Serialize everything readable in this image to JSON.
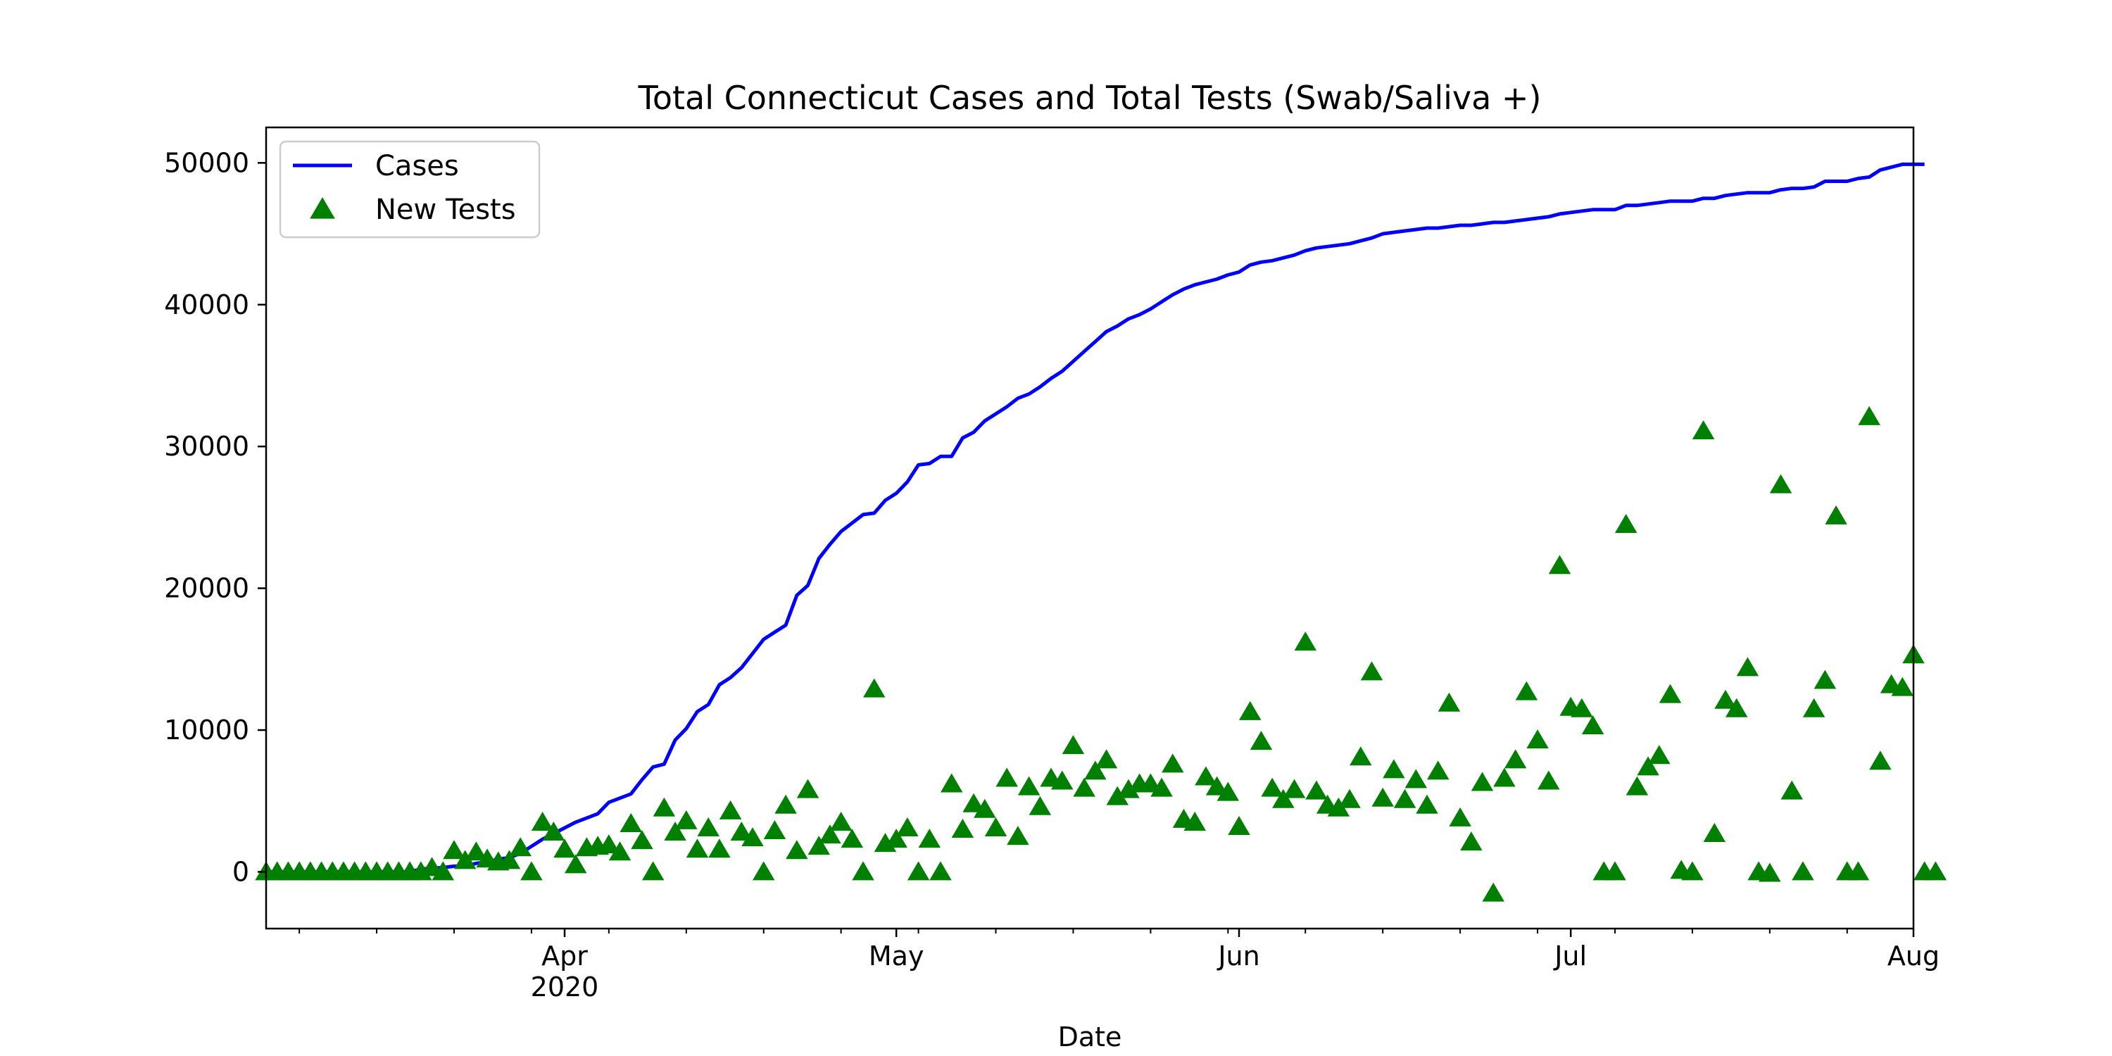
{
  "chart_data": {
    "type": "line",
    "title": "Total Connecticut Cases and Total Tests (Swab/Saliva +)",
    "xlabel": "Date",
    "ylabel": "",
    "x_range": [
      "2020-03-05",
      "2020-08-01"
    ],
    "ylim": [
      -4000,
      52500
    ],
    "yticks": [
      0,
      10000,
      20000,
      30000,
      40000,
      50000
    ],
    "xticks": [
      {
        "date": "2020-04-01",
        "label": "Apr",
        "sublabel": "2020"
      },
      {
        "date": "2020-05-01",
        "label": "May",
        "sublabel": ""
      },
      {
        "date": "2020-06-01",
        "label": "Jun",
        "sublabel": ""
      },
      {
        "date": "2020-07-01",
        "label": "Jul",
        "sublabel": ""
      },
      {
        "date": "2020-08-01",
        "label": "Aug",
        "sublabel": ""
      }
    ],
    "grid": false,
    "legend_position": "top-left",
    "start_date": "2020-03-05",
    "series": [
      {
        "name": "Cases",
        "kind": "line",
        "color": "#0000ff",
        "values": [
          0,
          0,
          0,
          0,
          0,
          0,
          0,
          0,
          0,
          0,
          0,
          0,
          0,
          0,
          200,
          250,
          300,
          400,
          400,
          600,
          700,
          900,
          1000,
          1300,
          1800,
          2300,
          2700,
          3100,
          3500,
          3800,
          4100,
          4900,
          5200,
          5500,
          6500,
          7400,
          7600,
          9300,
          10100,
          11300,
          11800,
          13200,
          13700,
          14400,
          15400,
          16400,
          16900,
          17400,
          19500,
          20200,
          22100,
          23100,
          24000,
          24600,
          25200,
          25300,
          26200,
          26700,
          27500,
          28700,
          28800,
          29300,
          29300,
          30600,
          31000,
          31800,
          32300,
          32800,
          33400,
          33700,
          34200,
          34800,
          35300,
          36000,
          36700,
          37400,
          38100,
          38500,
          39000,
          39300,
          39700,
          40200,
          40700,
          41100,
          41400,
          41600,
          41800,
          42100,
          42300,
          42800,
          43000,
          43100,
          43300,
          43500,
          43800,
          44000,
          44100,
          44200,
          44300,
          44500,
          44700,
          45000,
          45100,
          45200,
          45300,
          45400,
          45400,
          45500,
          45600,
          45600,
          45700,
          45800,
          45800,
          45900,
          46000,
          46100,
          46200,
          46400,
          46500,
          46600,
          46700,
          46700,
          46700,
          47000,
          47000,
          47100,
          47200,
          47300,
          47300,
          47300,
          47500,
          47500,
          47700,
          47800,
          47900,
          47900,
          47900,
          48100,
          48200,
          48200,
          48300,
          48700,
          48700,
          48700,
          48900,
          49000,
          49500,
          49700,
          49900,
          49900,
          49900
        ]
      },
      {
        "name": "New Tests",
        "kind": "scatter",
        "marker": "triangle",
        "color": "#008000",
        "values": [
          0,
          0,
          0,
          0,
          0,
          0,
          0,
          0,
          0,
          0,
          0,
          0,
          0,
          0,
          0,
          300,
          0,
          1500,
          800,
          1400,
          900,
          700,
          800,
          1700,
          0,
          3500,
          2800,
          1600,
          500,
          1700,
          1800,
          1900,
          1400,
          3400,
          2200,
          0,
          4500,
          2800,
          3600,
          1600,
          3100,
          1600,
          4300,
          2800,
          2400,
          0,
          2900,
          4700,
          1500,
          5800,
          1800,
          2600,
          3500,
          2300,
          0,
          12900,
          2000,
          2300,
          3100,
          0,
          2300,
          0,
          6200,
          3000,
          4800,
          4400,
          3100,
          6600,
          2500,
          6000,
          4600,
          6600,
          6400,
          8900,
          5900,
          7100,
          7900,
          5300,
          5800,
          6200,
          6200,
          5900,
          7600,
          3700,
          3500,
          6700,
          6000,
          5600,
          3200,
          11300,
          9200,
          5900,
          5100,
          5800,
          16200,
          5700,
          4700,
          4500,
          5100,
          8100,
          14100,
          5200,
          7200,
          5100,
          6500,
          4700,
          7100,
          11900,
          3800,
          2100,
          6300,
          -1500,
          6600,
          7900,
          12700,
          9300,
          6400,
          21600,
          11600,
          11500,
          10300,
          0,
          0,
          24500,
          6000,
          7400,
          8200,
          12500,
          100,
          0,
          31100,
          2700,
          12100,
          11500,
          14400,
          0,
          -100,
          27300,
          5700,
          0,
          11500,
          13500,
          25100,
          0,
          0,
          32100,
          7800,
          13200,
          13000,
          15300,
          0,
          0
        ]
      }
    ]
  }
}
